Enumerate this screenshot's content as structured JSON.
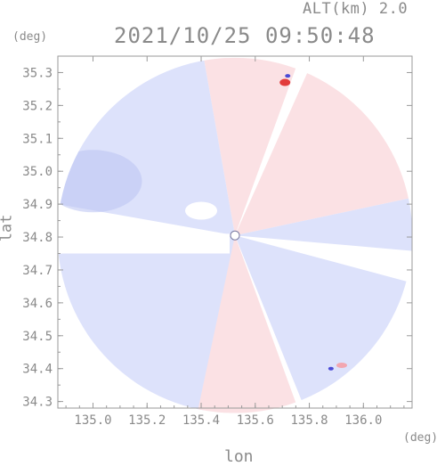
{
  "header": {
    "alt_label": "ALT(km) 2.0",
    "timestamp": "2021/10/25 09:50:48",
    "deg_left": "(deg)",
    "deg_right": "(deg)"
  },
  "chart_data": {
    "type": "heatmap",
    "title": "2021/10/25 09:50:48",
    "xlabel": "lon",
    "ylabel": "lat",
    "xlim": [
      134.87,
      136.18
    ],
    "ylim": [
      34.28,
      35.35
    ],
    "x_ticks": [
      "135.0",
      "135.2",
      "135.4",
      "135.6",
      "135.8",
      "136.0"
    ],
    "x_tick_values": [
      135.0,
      135.2,
      135.4,
      135.6,
      135.8,
      136.0
    ],
    "y_ticks": [
      "35.3",
      "35.2",
      "35.1",
      "35.0",
      "34.9",
      "34.8",
      "34.7",
      "34.6",
      "34.5",
      "34.4",
      "34.3"
    ],
    "y_tick_values": [
      35.3,
      35.2,
      35.1,
      35.0,
      34.9,
      34.8,
      34.7,
      34.6,
      34.5,
      34.4,
      34.3
    ],
    "radar_center": {
      "lon": 135.525,
      "lat": 34.805
    },
    "radar_radius_deg": 0.54,
    "colors": {
      "axis": "#9a9a9a",
      "approaching": "#dde2fb",
      "approaching_strong": "#b9c2f2",
      "receding": "#fbe1e4",
      "receding_strong": "#f2a6b0",
      "peak_red": "#e23b3b",
      "peak_blue": "#4b4bd6"
    }
  }
}
